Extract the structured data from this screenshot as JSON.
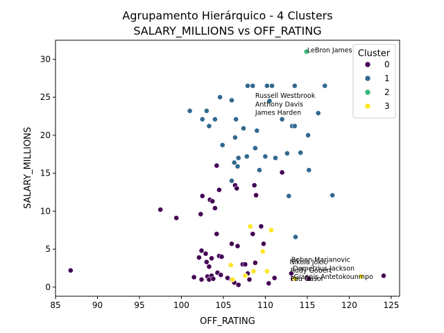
{
  "chart_data": {
    "type": "scatter",
    "title": [
      "Agrupamento Hierárquico - 4 Clusters",
      "SALARY_MILLIONS vs OFF_RATING"
    ],
    "xlabel": "OFF_RATING",
    "ylabel": "SALARY_MILLIONS",
    "xlim": [
      85,
      126
    ],
    "ylim": [
      -1.2,
      32.5
    ],
    "xticks": [
      85,
      90,
      95,
      100,
      105,
      110,
      115,
      120,
      125
    ],
    "yticks": [
      0,
      5,
      10,
      15,
      20,
      25,
      30
    ],
    "grid": false,
    "legend": {
      "title": "Cluster",
      "placement": "top-right",
      "entries": [
        "0",
        "1",
        "2",
        "3"
      ]
    },
    "colors": {
      "0": "#440154",
      "1": "#31688e",
      "2": "#35b779",
      "3": "#fde725"
    },
    "series": [
      {
        "name": "0",
        "points": [
          [
            86.8,
            2.2
          ],
          [
            97.5,
            10.2
          ],
          [
            99.4,
            9.1
          ],
          [
            101.5,
            1.3
          ],
          [
            102.1,
            3.9
          ],
          [
            102.3,
            9.6
          ],
          [
            102.4,
            4.8
          ],
          [
            102.4,
            1.0
          ],
          [
            102.5,
            12.0
          ],
          [
            102.9,
            4.4
          ],
          [
            103.0,
            3.3
          ],
          [
            103.1,
            1.4
          ],
          [
            103.3,
            2.7
          ],
          [
            103.3,
            1.0
          ],
          [
            103.4,
            11.5
          ],
          [
            103.6,
            1.5
          ],
          [
            103.6,
            3.8
          ],
          [
            103.7,
            11.3
          ],
          [
            103.8,
            1.1
          ],
          [
            104.0,
            10.4
          ],
          [
            104.2,
            16.0
          ],
          [
            104.2,
            7.0
          ],
          [
            104.3,
            1.9
          ],
          [
            104.5,
            12.8
          ],
          [
            104.5,
            4.1
          ],
          [
            104.7,
            1.6
          ],
          [
            104.8,
            4.0
          ],
          [
            105.5,
            1.2
          ],
          [
            106.0,
            5.7
          ],
          [
            106.0,
            1.0
          ],
          [
            106.3,
            0.6
          ],
          [
            106.4,
            13.4
          ],
          [
            106.6,
            13.0
          ],
          [
            106.7,
            5.4
          ],
          [
            106.8,
            0.3
          ],
          [
            107.3,
            3.0
          ],
          [
            107.6,
            3.0
          ],
          [
            107.9,
            1.8
          ],
          [
            108.1,
            1.0
          ],
          [
            108.5,
            7.0
          ],
          [
            108.7,
            13.4
          ],
          [
            108.8,
            3.2
          ],
          [
            108.9,
            12.1
          ],
          [
            109.5,
            8.0
          ],
          [
            109.8,
            5.7
          ],
          [
            110.4,
            0.5
          ],
          [
            111.1,
            1.2
          ],
          [
            112.0,
            15.1
          ],
          [
            113.1,
            1.8
          ],
          [
            113.3,
            1.1
          ],
          [
            115.0,
            1.2
          ],
          [
            115.2,
            1.1
          ],
          [
            124.1,
            1.5
          ]
        ]
      },
      {
        "name": "1",
        "points": [
          [
            101.0,
            23.2
          ],
          [
            102.5,
            22.1
          ],
          [
            103.0,
            23.2
          ],
          [
            103.3,
            21.2
          ],
          [
            104.0,
            22.1
          ],
          [
            104.6,
            25.0
          ],
          [
            104.9,
            18.7
          ],
          [
            106.0,
            24.6
          ],
          [
            106.0,
            14.0
          ],
          [
            106.3,
            16.4
          ],
          [
            106.4,
            19.7
          ],
          [
            106.5,
            22.1
          ],
          [
            106.7,
            15.9
          ],
          [
            106.8,
            17.0
          ],
          [
            107.4,
            20.9
          ],
          [
            107.8,
            17.2
          ],
          [
            107.9,
            26.5
          ],
          [
            108.5,
            26.5
          ],
          [
            108.8,
            18.3
          ],
          [
            109.0,
            20.6
          ],
          [
            109.3,
            15.4
          ],
          [
            110.0,
            17.2
          ],
          [
            110.2,
            26.5
          ],
          [
            110.5,
            24.5
          ],
          [
            110.8,
            26.5
          ],
          [
            111.2,
            17.0
          ],
          [
            112.0,
            22.1
          ],
          [
            112.6,
            17.6
          ],
          [
            112.8,
            12.0
          ],
          [
            113.2,
            21.2
          ],
          [
            113.5,
            26.5
          ],
          [
            113.5,
            21.2
          ],
          [
            113.6,
            6.6
          ],
          [
            114.2,
            17.7
          ],
          [
            115.1,
            20.0
          ],
          [
            115.2,
            15.4
          ],
          [
            116.3,
            22.9
          ],
          [
            117.1,
            26.5
          ],
          [
            118.0,
            12.1
          ]
        ]
      },
      {
        "name": "2",
        "points": [
          [
            114.9,
            31.0
          ]
        ]
      },
      {
        "name": "3",
        "points": [
          [
            105.9,
            2.9
          ],
          [
            106.1,
            1.0
          ],
          [
            107.6,
            1.5
          ],
          [
            108.2,
            8.0
          ],
          [
            108.6,
            2.1
          ],
          [
            109.7,
            4.7
          ],
          [
            110.2,
            2.1
          ],
          [
            110.7,
            7.5
          ],
          [
            113.5,
            1.1
          ],
          [
            121.4,
            1.4
          ]
        ]
      }
    ],
    "annotations": [
      {
        "text": "LeBron James",
        "x": 115.0,
        "y": 30.9
      },
      {
        "text": "Russell Westbrook",
        "x": 108.8,
        "y": 24.9
      },
      {
        "text": "Anthony Davis",
        "x": 108.8,
        "y": 23.8
      },
      {
        "text": "James Harden",
        "x": 108.8,
        "y": 22.7
      },
      {
        "text": "Boban Marjanovic",
        "x": 113.1,
        "y": 3.3
      },
      {
        "text": "Nikola Jokic",
        "x": 112.9,
        "y": 3.0
      },
      {
        "text": "Demetrius Jackson",
        "x": 113.3,
        "y": 2.2
      },
      {
        "text": "Rudy Gobert",
        "x": 113.0,
        "y": 1.9
      },
      {
        "text": "Giannis Antetokounmpo",
        "x": 113.4,
        "y": 1.1
      },
      {
        "text": "Pau Gasol",
        "x": 113.0,
        "y": 0.8
      }
    ]
  }
}
